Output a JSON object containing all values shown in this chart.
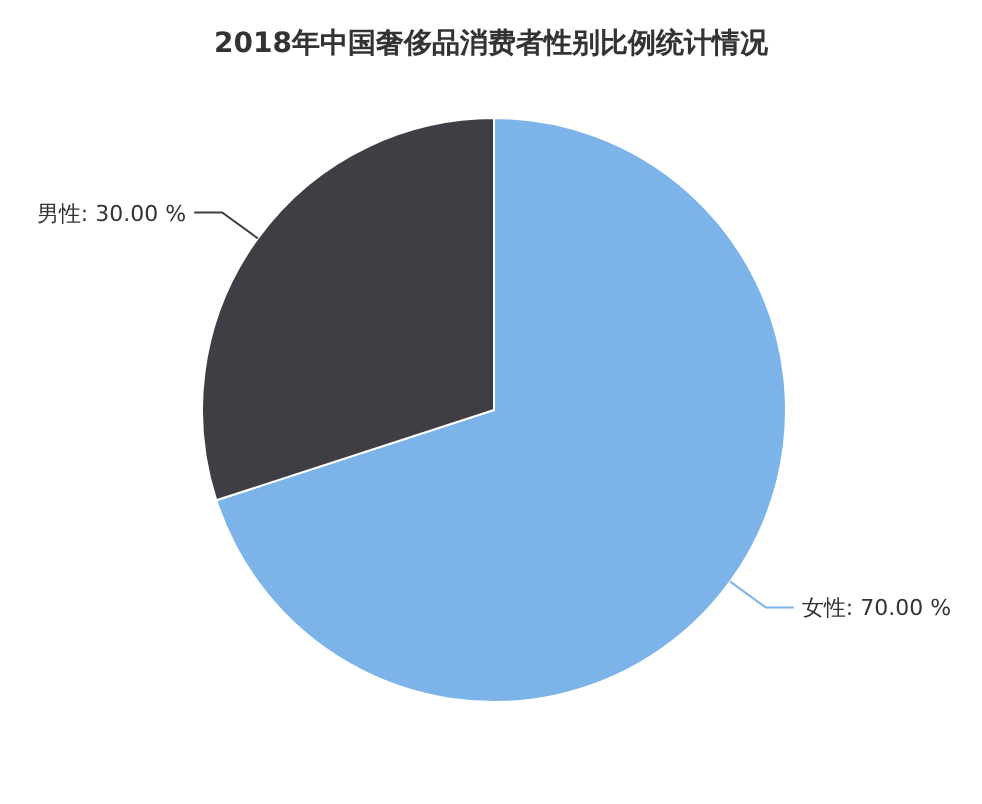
{
  "chart_data": {
    "type": "pie",
    "title": "2018年中国奢侈品消费者性别比例统计情况",
    "categories": [
      "女性",
      "男性"
    ],
    "values": [
      70,
      30
    ],
    "colors": [
      "#7cb4ea",
      "#3f3e44"
    ],
    "value_labels": [
      "70.00 %",
      "30.00 %"
    ]
  }
}
